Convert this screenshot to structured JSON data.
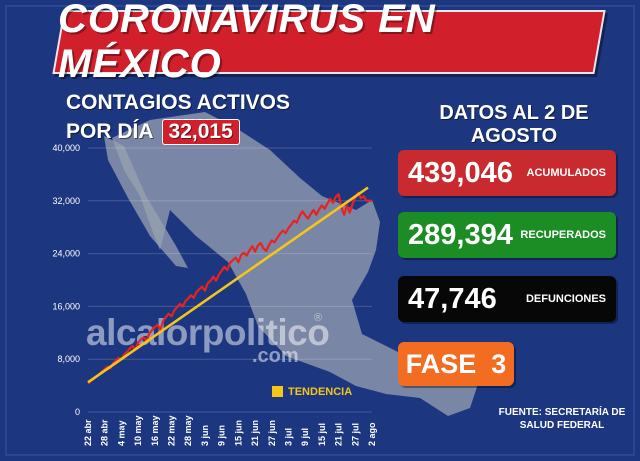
{
  "colors": {
    "background": "#1d3680",
    "title_banner": "#d11f2b",
    "map": "#9aa2b1",
    "series_line": "#e8231e",
    "trend_line": "#f5c518",
    "accumulated": "#c92a2f",
    "recovered": "#1c8d24",
    "deaths": "#070707",
    "phase": "#f26d21"
  },
  "title": "CORONAVIRUS EN MÉXICO",
  "chart_heading": {
    "line1": "CONTAGIOS ACTIVOS",
    "line2": "POR DÍA",
    "current_value": "32,015"
  },
  "date_heading": "DATOS AL 2 DE AGOSTO",
  "stats": {
    "acumulados": {
      "value": "439,046",
      "label": "ACUMULADOS"
    },
    "recuperados": {
      "value": "289,394",
      "label": "RECUPERADOS"
    },
    "defunciones": {
      "value": "47,746",
      "label": "DEFUNCIONES"
    }
  },
  "phase": "FASE  3",
  "source": "FUENTE: SECRETARÍA DE SALUD FEDERAL",
  "watermark": {
    "main": "alcalorpolitico",
    "sub": ".com",
    "reg": "®"
  },
  "chart_data": {
    "type": "line",
    "title": "CONTAGIOS ACTIVOS POR DÍA",
    "x_tick_labels": [
      "22 abr",
      "28 abr",
      "4 may",
      "10 may",
      "16 may",
      "22 may",
      "28 may",
      "3 jun",
      "9 jun",
      "15 jun",
      "21 jun",
      "27 jun",
      "3 jul",
      "9 jul",
      "15 jul",
      "21 jul",
      "27 jul",
      "2 ago"
    ],
    "y_tick_labels": [
      "0",
      "8,000",
      "16,000",
      "24,000",
      "32,000",
      "40,000"
    ],
    "ylim": [
      0,
      40000
    ],
    "grid": true,
    "legend": [
      {
        "name": "TENDENCIA",
        "color": "#f5c518",
        "position": "bottom-right"
      }
    ],
    "series": [
      {
        "name": "Contagios activos",
        "color": "#e8231e",
        "values": [
          4300,
          4700,
          5000,
          5400,
          5700,
          6100,
          6500,
          6900,
          6600,
          7400,
          7800,
          8200,
          8000,
          8700,
          9100,
          9600,
          10000,
          9400,
          10500,
          11000,
          11300,
          10800,
          11900,
          12400,
          12900,
          13200,
          12500,
          13800,
          14400,
          14900,
          14500,
          15400,
          15900,
          16400,
          16000,
          16800,
          17200,
          17700,
          17300,
          18200,
          18600,
          19000,
          18400,
          19500,
          19900,
          20500,
          19900,
          20800,
          21400,
          22000,
          21500,
          22600,
          23000,
          23400,
          22700,
          23800,
          24100,
          23700,
          24500,
          25100,
          24300,
          25200,
          25600,
          24800,
          24400,
          25300,
          26000,
          25700,
          26400,
          27000,
          27500,
          27100,
          27900,
          28400,
          29000,
          28700,
          29700,
          30400,
          29800,
          29300,
          30000,
          30600,
          29900,
          30700,
          31300,
          30800,
          31600,
          32300,
          31700,
          32600,
          33000,
          31000,
          29900,
          31300,
          30200,
          31500,
          32500,
          33200,
          32400,
          32700,
          32015,
          32015,
          32015
        ]
      },
      {
        "name": "TENDENCIA",
        "color": "#f5c518",
        "x_endpoints": [
          "22 abr",
          "2 ago"
        ],
        "values": [
          4500,
          34000
        ]
      }
    ]
  }
}
